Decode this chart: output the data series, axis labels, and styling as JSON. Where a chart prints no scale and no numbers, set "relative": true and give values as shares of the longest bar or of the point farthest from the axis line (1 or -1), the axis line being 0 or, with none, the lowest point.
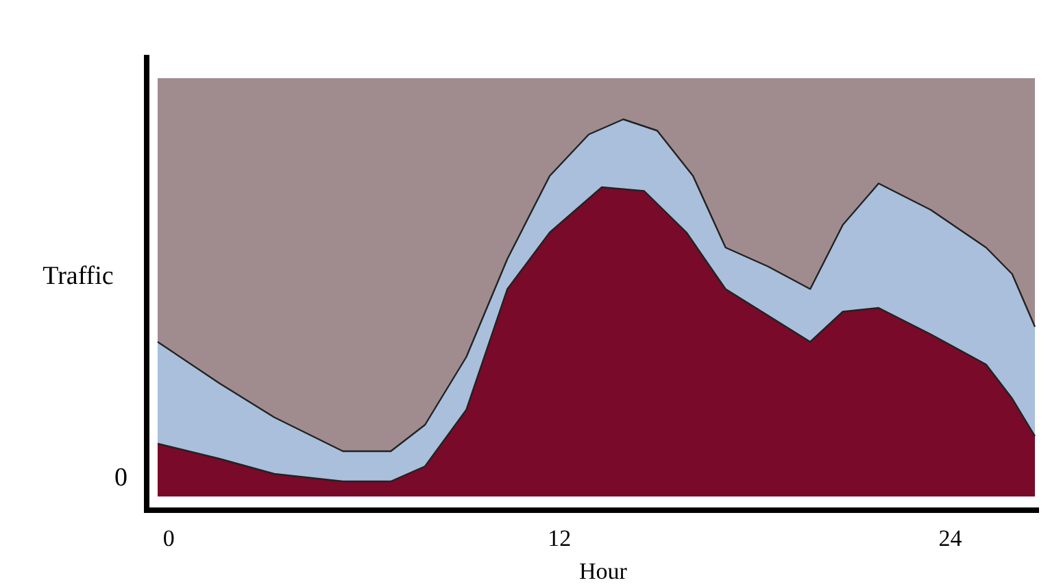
{
  "chart_data": {
    "type": "area",
    "relative": true,
    "xlabel": "Hour",
    "ylabel": "Traffic",
    "xlim": [
      -0.34,
      26.6
    ],
    "xticks": [
      0,
      12,
      24
    ],
    "annotations": [
      "0"
    ],
    "series": [
      {
        "color": "#a9bfdc",
        "x": [
          -0.34,
          1.56,
          3.24,
          5.35,
          6.82,
          7.87,
          9.14,
          10.4,
          11.7,
          12.9,
          13.96,
          15.0,
          16.1,
          17.1,
          18.4,
          19.7,
          20.7,
          21.8,
          23.4,
          25.1,
          25.9,
          26.6
        ],
        "values": [
          0.41,
          0.3,
          0.21,
          0.12,
          0.12,
          0.19,
          0.37,
          0.63,
          0.85,
          0.96,
          1.0,
          0.97,
          0.85,
          0.66,
          0.61,
          0.55,
          0.72,
          0.83,
          0.76,
          0.66,
          0.59,
          0.45
        ]
      },
      {
        "color": "#7a0a2a",
        "x": [
          -0.34,
          1.56,
          3.24,
          5.35,
          6.82,
          7.87,
          9.14,
          10.4,
          11.7,
          13.3,
          14.6,
          15.9,
          17.1,
          18.4,
          19.7,
          20.7,
          21.8,
          23.4,
          25.1,
          25.9,
          26.6
        ],
        "values": [
          0.14,
          0.1,
          0.06,
          0.04,
          0.04,
          0.08,
          0.23,
          0.55,
          0.7,
          0.82,
          0.81,
          0.7,
          0.55,
          0.48,
          0.41,
          0.49,
          0.5,
          0.43,
          0.35,
          0.26,
          0.16
        ]
      }
    ]
  }
}
